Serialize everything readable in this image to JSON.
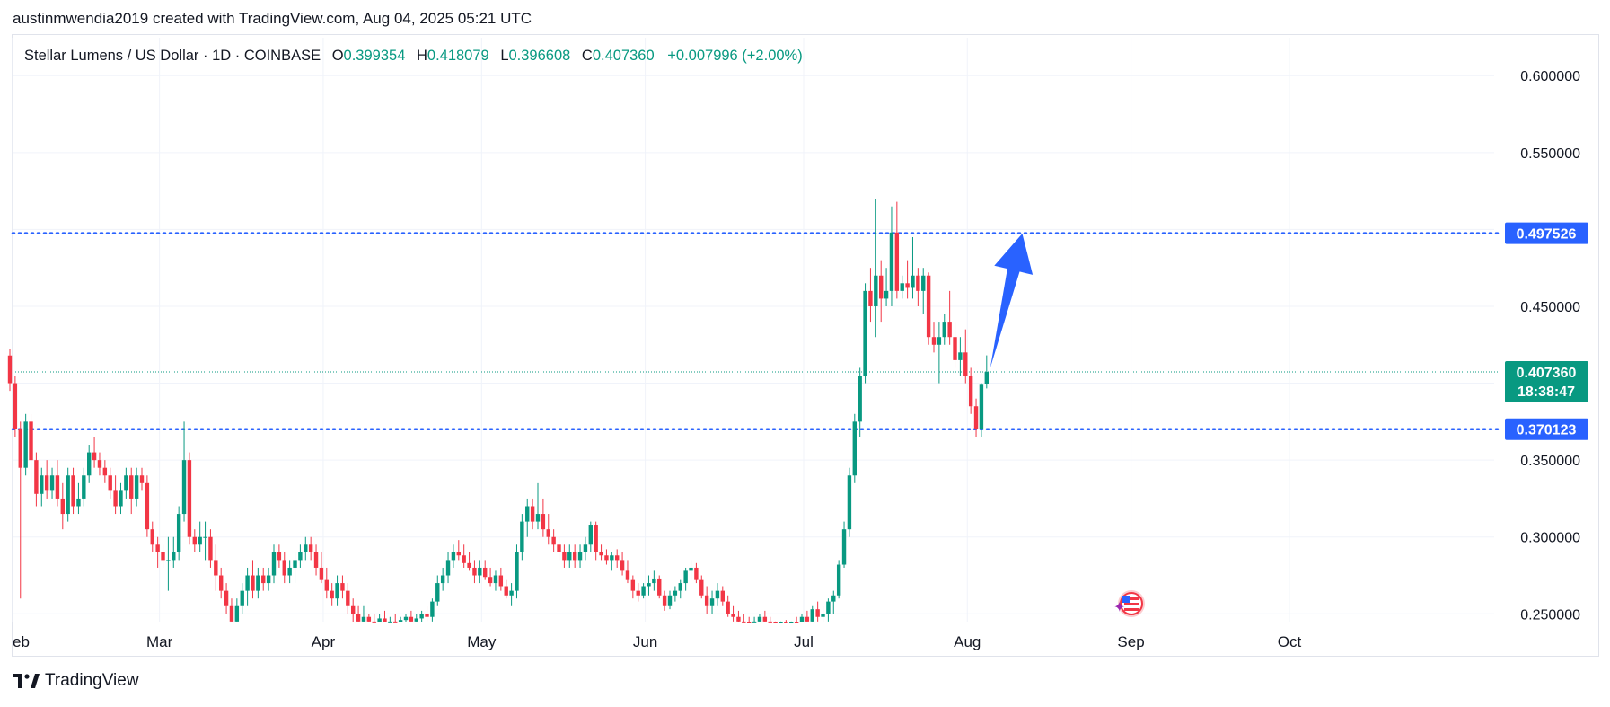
{
  "attribution": "austinmwendia2019 created with TradingView.com, Aug 04, 2025 05:21 UTC",
  "legend": {
    "symbol": "Stellar Lumens / US Dollar · 1D · COINBASE",
    "open_label": "O",
    "open": "0.399354",
    "high_label": "H",
    "high": "0.418079",
    "low_label": "L",
    "low": "0.396608",
    "close_label": "C",
    "close": "0.407360",
    "change": "+0.007996 (+2.00%)"
  },
  "footer_brand": "TradingView",
  "chart_data": {
    "type": "candlestick",
    "x_axis_labels": [
      "eb",
      "Mar",
      "Apr",
      "May",
      "Jun",
      "Jul",
      "Aug",
      "Sep",
      "Oct"
    ],
    "y_axis_labels": [
      "0.600000",
      "0.550000",
      "0.450000",
      "0.350000",
      "0.300000",
      "0.250000"
    ],
    "ylim": [
      0.242,
      0.62
    ],
    "x_range": [
      "2025-02-01",
      "2025-10-01"
    ],
    "horizontal_lines": [
      {
        "value": 0.497526,
        "label": "0.497526",
        "color": "#2962ff",
        "style": "dotted"
      },
      {
        "value": 0.370123,
        "label": "0.370123",
        "color": "#2962ff",
        "style": "dotted"
      }
    ],
    "current_price": {
      "value": 0.40736,
      "label": "0.407360",
      "countdown": "18:38:47",
      "color": "#089981"
    },
    "arrow": {
      "from": {
        "date": "2025-08-05",
        "value": 0.41
      },
      "to": {
        "date": "2025-08-08",
        "value": 0.495
      },
      "color": "#2962ff"
    },
    "colors": {
      "up": "#089981",
      "down": "#f23645",
      "grid": "#f0f3fa"
    },
    "candles": [
      [
        "2025-02-01",
        0.418,
        0.422,
        0.395,
        0.4
      ],
      [
        "2025-02-02",
        0.4,
        0.405,
        0.365,
        0.37
      ],
      [
        "2025-02-03",
        0.37,
        0.375,
        0.26,
        0.345
      ],
      [
        "2025-02-04",
        0.345,
        0.38,
        0.34,
        0.375
      ],
      [
        "2025-02-05",
        0.375,
        0.38,
        0.335,
        0.35
      ],
      [
        "2025-02-06",
        0.35,
        0.355,
        0.32,
        0.328
      ],
      [
        "2025-02-07",
        0.328,
        0.345,
        0.32,
        0.34
      ],
      [
        "2025-02-08",
        0.34,
        0.35,
        0.325,
        0.33
      ],
      [
        "2025-02-09",
        0.33,
        0.345,
        0.325,
        0.34
      ],
      [
        "2025-02-10",
        0.34,
        0.35,
        0.32,
        0.325
      ],
      [
        "2025-02-11",
        0.325,
        0.335,
        0.305,
        0.315
      ],
      [
        "2025-02-12",
        0.315,
        0.345,
        0.31,
        0.34
      ],
      [
        "2025-02-13",
        0.34,
        0.345,
        0.315,
        0.32
      ],
      [
        "2025-02-14",
        0.32,
        0.335,
        0.315,
        0.325
      ],
      [
        "2025-02-15",
        0.325,
        0.345,
        0.32,
        0.34
      ],
      [
        "2025-02-16",
        0.34,
        0.36,
        0.335,
        0.355
      ],
      [
        "2025-02-17",
        0.355,
        0.365,
        0.345,
        0.35
      ],
      [
        "2025-02-18",
        0.35,
        0.355,
        0.34,
        0.345
      ],
      [
        "2025-02-19",
        0.345,
        0.35,
        0.335,
        0.34
      ],
      [
        "2025-02-20",
        0.34,
        0.345,
        0.325,
        0.33
      ],
      [
        "2025-02-21",
        0.33,
        0.34,
        0.315,
        0.32
      ],
      [
        "2025-02-22",
        0.32,
        0.335,
        0.315,
        0.33
      ],
      [
        "2025-02-23",
        0.33,
        0.345,
        0.325,
        0.34
      ],
      [
        "2025-02-24",
        0.34,
        0.345,
        0.315,
        0.325
      ],
      [
        "2025-02-25",
        0.325,
        0.345,
        0.32,
        0.34
      ],
      [
        "2025-02-26",
        0.34,
        0.345,
        0.33,
        0.335
      ],
      [
        "2025-02-27",
        0.335,
        0.34,
        0.3,
        0.305
      ],
      [
        "2025-02-28",
        0.305,
        0.31,
        0.29,
        0.295
      ],
      [
        "2025-03-01",
        0.295,
        0.3,
        0.28,
        0.29
      ],
      [
        "2025-03-02",
        0.29,
        0.295,
        0.28,
        0.285
      ],
      [
        "2025-03-03",
        0.285,
        0.3,
        0.265,
        0.285
      ],
      [
        "2025-03-04",
        0.285,
        0.3,
        0.28,
        0.29
      ],
      [
        "2025-03-05",
        0.29,
        0.32,
        0.285,
        0.315
      ],
      [
        "2025-03-06",
        0.315,
        0.375,
        0.31,
        0.35
      ],
      [
        "2025-03-07",
        0.35,
        0.355,
        0.295,
        0.3
      ],
      [
        "2025-03-08",
        0.3,
        0.305,
        0.29,
        0.295
      ],
      [
        "2025-03-09",
        0.295,
        0.31,
        0.29,
        0.3
      ],
      [
        "2025-03-10",
        0.3,
        0.31,
        0.285,
        0.3
      ],
      [
        "2025-03-11",
        0.3,
        0.305,
        0.28,
        0.285
      ],
      [
        "2025-03-12",
        0.285,
        0.295,
        0.265,
        0.275
      ],
      [
        "2025-03-13",
        0.275,
        0.28,
        0.26,
        0.265
      ],
      [
        "2025-03-14",
        0.265,
        0.27,
        0.25,
        0.255
      ],
      [
        "2025-03-15",
        0.255,
        0.26,
        0.24,
        0.245
      ],
      [
        "2025-03-16",
        0.245,
        0.26,
        0.24,
        0.255
      ],
      [
        "2025-03-17",
        0.255,
        0.27,
        0.25,
        0.265
      ],
      [
        "2025-03-18",
        0.265,
        0.28,
        0.255,
        0.275
      ],
      [
        "2025-03-19",
        0.275,
        0.285,
        0.26,
        0.265
      ],
      [
        "2025-03-20",
        0.265,
        0.28,
        0.26,
        0.275
      ],
      [
        "2025-03-21",
        0.275,
        0.28,
        0.265,
        0.27
      ],
      [
        "2025-03-22",
        0.27,
        0.28,
        0.265,
        0.275
      ],
      [
        "2025-03-23",
        0.275,
        0.295,
        0.27,
        0.29
      ],
      [
        "2025-03-24",
        0.29,
        0.295,
        0.28,
        0.285
      ],
      [
        "2025-03-25",
        0.285,
        0.29,
        0.27,
        0.275
      ],
      [
        "2025-03-26",
        0.275,
        0.285,
        0.27,
        0.28
      ],
      [
        "2025-03-27",
        0.28,
        0.29,
        0.27,
        0.285
      ],
      [
        "2025-03-28",
        0.285,
        0.295,
        0.28,
        0.29
      ],
      [
        "2025-03-29",
        0.29,
        0.3,
        0.285,
        0.295
      ],
      [
        "2025-03-30",
        0.295,
        0.3,
        0.285,
        0.29
      ],
      [
        "2025-03-31",
        0.29,
        0.295,
        0.275,
        0.28
      ],
      [
        "2025-04-01",
        0.28,
        0.29,
        0.27,
        0.272
      ],
      [
        "2025-04-02",
        0.272,
        0.28,
        0.26,
        0.265
      ],
      [
        "2025-04-03",
        0.265,
        0.27,
        0.255,
        0.26
      ],
      [
        "2025-04-04",
        0.26,
        0.275,
        0.255,
        0.27
      ],
      [
        "2025-04-05",
        0.27,
        0.275,
        0.26,
        0.265
      ],
      [
        "2025-04-06",
        0.265,
        0.27,
        0.25,
        0.255
      ],
      [
        "2025-04-07",
        0.255,
        0.26,
        0.24,
        0.25
      ],
      [
        "2025-04-08",
        0.25,
        0.255,
        0.24,
        0.245
      ],
      [
        "2025-04-09",
        0.245,
        0.255,
        0.24,
        0.248
      ],
      [
        "2025-04-10",
        0.248,
        0.25,
        0.242,
        0.245
      ],
      [
        "2025-04-11",
        0.245,
        0.25,
        0.24,
        0.243
      ],
      [
        "2025-04-12",
        0.243,
        0.25,
        0.24,
        0.247
      ],
      [
        "2025-04-13",
        0.247,
        0.252,
        0.24,
        0.242
      ],
      [
        "2025-04-14",
        0.242,
        0.248,
        0.24,
        0.245
      ],
      [
        "2025-04-15",
        0.245,
        0.25,
        0.24,
        0.242
      ],
      [
        "2025-04-16",
        0.242,
        0.248,
        0.24,
        0.246
      ],
      [
        "2025-04-17",
        0.246,
        0.25,
        0.242,
        0.248
      ],
      [
        "2025-04-18",
        0.248,
        0.252,
        0.243,
        0.245
      ],
      [
        "2025-04-19",
        0.245,
        0.25,
        0.242,
        0.247
      ],
      [
        "2025-04-20",
        0.247,
        0.252,
        0.244,
        0.25
      ],
      [
        "2025-04-21",
        0.25,
        0.255,
        0.245,
        0.248
      ],
      [
        "2025-04-22",
        0.248,
        0.26,
        0.245,
        0.258
      ],
      [
        "2025-04-23",
        0.258,
        0.275,
        0.255,
        0.27
      ],
      [
        "2025-04-24",
        0.27,
        0.28,
        0.265,
        0.275
      ],
      [
        "2025-04-25",
        0.275,
        0.29,
        0.27,
        0.285
      ],
      [
        "2025-04-26",
        0.285,
        0.295,
        0.28,
        0.29
      ],
      [
        "2025-04-27",
        0.29,
        0.298,
        0.285,
        0.288
      ],
      [
        "2025-04-28",
        0.288,
        0.295,
        0.28,
        0.283
      ],
      [
        "2025-04-29",
        0.283,
        0.29,
        0.278,
        0.28
      ],
      [
        "2025-04-30",
        0.28,
        0.285,
        0.27,
        0.275
      ],
      [
        "2025-05-01",
        0.275,
        0.285,
        0.27,
        0.28
      ],
      [
        "2025-05-02",
        0.28,
        0.285,
        0.272,
        0.274
      ],
      [
        "2025-05-03",
        0.274,
        0.28,
        0.268,
        0.27
      ],
      [
        "2025-05-04",
        0.27,
        0.278,
        0.265,
        0.275
      ],
      [
        "2025-05-05",
        0.275,
        0.28,
        0.265,
        0.268
      ],
      [
        "2025-05-06",
        0.268,
        0.272,
        0.26,
        0.262
      ],
      [
        "2025-05-07",
        0.262,
        0.27,
        0.255,
        0.265
      ],
      [
        "2025-05-08",
        0.265,
        0.295,
        0.26,
        0.29
      ],
      [
        "2025-05-09",
        0.29,
        0.315,
        0.285,
        0.31
      ],
      [
        "2025-05-10",
        0.31,
        0.325,
        0.3,
        0.32
      ],
      [
        "2025-05-11",
        0.32,
        0.325,
        0.305,
        0.31
      ],
      [
        "2025-05-12",
        0.31,
        0.335,
        0.305,
        0.315
      ],
      [
        "2025-05-13",
        0.315,
        0.325,
        0.3,
        0.305
      ],
      [
        "2025-05-14",
        0.305,
        0.315,
        0.295,
        0.3
      ],
      [
        "2025-05-15",
        0.3,
        0.305,
        0.29,
        0.295
      ],
      [
        "2025-05-16",
        0.295,
        0.3,
        0.285,
        0.29
      ],
      [
        "2025-05-17",
        0.29,
        0.295,
        0.28,
        0.285
      ],
      [
        "2025-05-18",
        0.285,
        0.295,
        0.28,
        0.29
      ],
      [
        "2025-05-19",
        0.29,
        0.295,
        0.28,
        0.285
      ],
      [
        "2025-05-20",
        0.285,
        0.295,
        0.28,
        0.29
      ],
      [
        "2025-05-21",
        0.29,
        0.3,
        0.285,
        0.295
      ],
      [
        "2025-05-22",
        0.295,
        0.31,
        0.29,
        0.308
      ],
      [
        "2025-05-23",
        0.308,
        0.31,
        0.285,
        0.29
      ],
      [
        "2025-05-24",
        0.29,
        0.295,
        0.285,
        0.288
      ],
      [
        "2025-05-25",
        0.288,
        0.292,
        0.282,
        0.285
      ],
      [
        "2025-05-26",
        0.285,
        0.29,
        0.278,
        0.288
      ],
      [
        "2025-05-27",
        0.288,
        0.292,
        0.28,
        0.285
      ],
      [
        "2025-05-28",
        0.285,
        0.29,
        0.275,
        0.278
      ],
      [
        "2025-05-29",
        0.278,
        0.285,
        0.27,
        0.272
      ],
      [
        "2025-05-30",
        0.272,
        0.275,
        0.26,
        0.265
      ],
      [
        "2025-05-31",
        0.265,
        0.27,
        0.258,
        0.262
      ],
      [
        "2025-06-01",
        0.262,
        0.27,
        0.26,
        0.268
      ],
      [
        "2025-06-02",
        0.268,
        0.275,
        0.262,
        0.27
      ],
      [
        "2025-06-03",
        0.27,
        0.278,
        0.265,
        0.273
      ],
      [
        "2025-06-04",
        0.273,
        0.275,
        0.26,
        0.262
      ],
      [
        "2025-06-05",
        0.262,
        0.265,
        0.252,
        0.255
      ],
      [
        "2025-06-06",
        0.255,
        0.265,
        0.253,
        0.262
      ],
      [
        "2025-06-07",
        0.262,
        0.268,
        0.258,
        0.265
      ],
      [
        "2025-06-08",
        0.265,
        0.272,
        0.26,
        0.27
      ],
      [
        "2025-06-09",
        0.27,
        0.28,
        0.265,
        0.278
      ],
      [
        "2025-06-10",
        0.278,
        0.285,
        0.272,
        0.28
      ],
      [
        "2025-06-11",
        0.28,
        0.283,
        0.27,
        0.272
      ],
      [
        "2025-06-12",
        0.272,
        0.275,
        0.26,
        0.262
      ],
      [
        "2025-06-13",
        0.262,
        0.268,
        0.25,
        0.255
      ],
      [
        "2025-06-14",
        0.255,
        0.265,
        0.25,
        0.26
      ],
      [
        "2025-06-15",
        0.26,
        0.27,
        0.255,
        0.265
      ],
      [
        "2025-06-16",
        0.265,
        0.268,
        0.255,
        0.258
      ],
      [
        "2025-06-17",
        0.258,
        0.262,
        0.248,
        0.25
      ],
      [
        "2025-06-18",
        0.25,
        0.255,
        0.245,
        0.248
      ],
      [
        "2025-06-19",
        0.248,
        0.252,
        0.242,
        0.245
      ],
      [
        "2025-06-20",
        0.245,
        0.25,
        0.24,
        0.243
      ],
      [
        "2025-06-21",
        0.243,
        0.248,
        0.238,
        0.242
      ],
      [
        "2025-06-22",
        0.242,
        0.248,
        0.235,
        0.245
      ],
      [
        "2025-06-23",
        0.245,
        0.25,
        0.24,
        0.248
      ],
      [
        "2025-06-24",
        0.248,
        0.252,
        0.242,
        0.245
      ],
      [
        "2025-06-25",
        0.245,
        0.248,
        0.24,
        0.242
      ],
      [
        "2025-06-26",
        0.242,
        0.245,
        0.238,
        0.24
      ],
      [
        "2025-06-27",
        0.24,
        0.245,
        0.238,
        0.243
      ],
      [
        "2025-06-28",
        0.243,
        0.246,
        0.239,
        0.241
      ],
      [
        "2025-06-29",
        0.241,
        0.245,
        0.238,
        0.244
      ],
      [
        "2025-06-30",
        0.244,
        0.248,
        0.24,
        0.242
      ],
      [
        "2025-07-01",
        0.242,
        0.25,
        0.238,
        0.248
      ],
      [
        "2025-07-02",
        0.248,
        0.252,
        0.242,
        0.245
      ],
      [
        "2025-07-03",
        0.245,
        0.255,
        0.242,
        0.253
      ],
      [
        "2025-07-04",
        0.253,
        0.258,
        0.245,
        0.248
      ],
      [
        "2025-07-05",
        0.248,
        0.255,
        0.244,
        0.25
      ],
      [
        "2025-07-06",
        0.25,
        0.26,
        0.245,
        0.258
      ],
      [
        "2025-07-07",
        0.258,
        0.265,
        0.25,
        0.262
      ],
      [
        "2025-07-08",
        0.262,
        0.285,
        0.26,
        0.282
      ],
      [
        "2025-07-09",
        0.282,
        0.31,
        0.28,
        0.305
      ],
      [
        "2025-07-10",
        0.305,
        0.345,
        0.3,
        0.34
      ],
      [
        "2025-07-11",
        0.34,
        0.38,
        0.335,
        0.375
      ],
      [
        "2025-07-12",
        0.375,
        0.41,
        0.365,
        0.405
      ],
      [
        "2025-07-13",
        0.405,
        0.465,
        0.4,
        0.46
      ],
      [
        "2025-07-14",
        0.46,
        0.475,
        0.44,
        0.45
      ],
      [
        "2025-07-15",
        0.45,
        0.52,
        0.43,
        0.47
      ],
      [
        "2025-07-16",
        0.47,
        0.48,
        0.44,
        0.455
      ],
      [
        "2025-07-17",
        0.455,
        0.475,
        0.45,
        0.46
      ],
      [
        "2025-07-18",
        0.46,
        0.515,
        0.45,
        0.498
      ],
      [
        "2025-07-19",
        0.498,
        0.518,
        0.455,
        0.46
      ],
      [
        "2025-07-20",
        0.46,
        0.47,
        0.455,
        0.465
      ],
      [
        "2025-07-21",
        0.465,
        0.48,
        0.455,
        0.462
      ],
      [
        "2025-07-22",
        0.462,
        0.495,
        0.455,
        0.47
      ],
      [
        "2025-07-23",
        0.47,
        0.475,
        0.45,
        0.46
      ],
      [
        "2025-07-24",
        0.46,
        0.475,
        0.445,
        0.47
      ],
      [
        "2025-07-25",
        0.47,
        0.472,
        0.425,
        0.43
      ],
      [
        "2025-07-26",
        0.43,
        0.44,
        0.42,
        0.425
      ],
      [
        "2025-07-27",
        0.425,
        0.44,
        0.4,
        0.43
      ],
      [
        "2025-07-28",
        0.43,
        0.445,
        0.425,
        0.44
      ],
      [
        "2025-07-29",
        0.44,
        0.46,
        0.425,
        0.43
      ],
      [
        "2025-07-30",
        0.43,
        0.44,
        0.41,
        0.415
      ],
      [
        "2025-07-31",
        0.415,
        0.43,
        0.405,
        0.42
      ],
      [
        "2025-08-01",
        0.42,
        0.435,
        0.4,
        0.405
      ],
      [
        "2025-08-02",
        0.405,
        0.41,
        0.38,
        0.385
      ],
      [
        "2025-08-03",
        0.385,
        0.39,
        0.365,
        0.37
      ],
      [
        "2025-08-04",
        0.37,
        0.4,
        0.365,
        0.399
      ],
      [
        "2025-08-05",
        0.3993,
        0.4181,
        0.3966,
        0.4074
      ]
    ]
  }
}
